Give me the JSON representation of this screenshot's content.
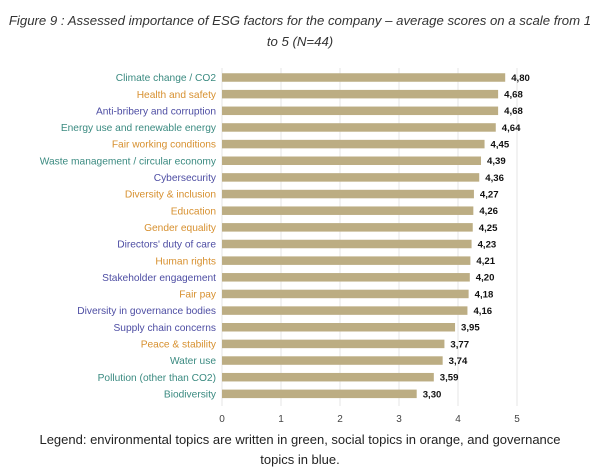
{
  "title_line1": "Figure 9 : Assessed importance of ESG factors for the company – average scores on a scale from 1",
  "title_line2": "to 5 (N=44)",
  "legend_line1": "Legend: environmental topics are written in green, social topics in orange, and governance",
  "legend_line2": "topics in blue.",
  "colors": {
    "environmental": "#3a8a80",
    "social": "#d7902f",
    "governance": "#4d4da3",
    "bar": "#bcad83",
    "grid": "#e4e4e4"
  },
  "chart_data": {
    "type": "bar",
    "orientation": "horizontal",
    "title": "Figure 9 : Assessed importance of ESG factors for the company – average scores on a scale from 1 to 5 (N=44)",
    "xlim": [
      0,
      5
    ],
    "xticks": [
      0,
      1,
      2,
      3,
      4,
      5
    ],
    "grid": true,
    "categories": [
      "Climate change / CO2",
      "Health and safety",
      "Anti-bribery and corruption",
      "Energy use and renewable energy",
      "Fair working conditions",
      "Waste management / circular economy",
      "Cybersecurity",
      "Diversity & inclusion",
      "Education",
      "Gender equality",
      "Directors' duty of care",
      "Human rights",
      "Stakeholder engagement",
      "Fair pay",
      "Diversity in governance bodies",
      "Supply chain concerns",
      "Peace & stability",
      "Water use",
      "Pollution (other than CO2)",
      "Biodiversity"
    ],
    "values": [
      4.8,
      4.68,
      4.68,
      4.64,
      4.45,
      4.39,
      4.36,
      4.27,
      4.26,
      4.25,
      4.23,
      4.21,
      4.2,
      4.18,
      4.16,
      3.95,
      3.77,
      3.74,
      3.59,
      3.3
    ],
    "value_labels": [
      "4,80",
      "4,68",
      "4,68",
      "4,64",
      "4,45",
      "4,39",
      "4,36",
      "4,27",
      "4,26",
      "4,25",
      "4,23",
      "4,21",
      "4,20",
      "4,18",
      "4,16",
      "3,95",
      "3,77",
      "3,74",
      "3,59",
      "3,30"
    ],
    "topics": [
      "environmental",
      "social",
      "governance",
      "environmental",
      "social",
      "environmental",
      "governance",
      "social",
      "social",
      "social",
      "governance",
      "social",
      "governance",
      "social",
      "governance",
      "governance",
      "social",
      "environmental",
      "environmental",
      "environmental"
    ]
  }
}
